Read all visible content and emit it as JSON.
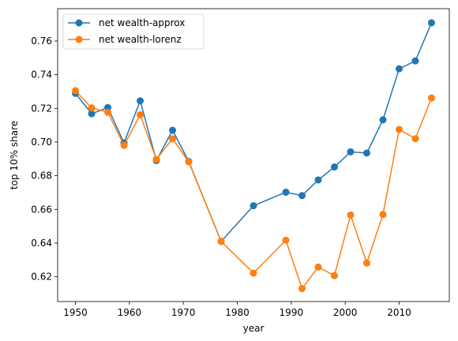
{
  "chart_data": {
    "type": "line",
    "xlabel": "year",
    "ylabel": "top 10% share",
    "xlim": [
      1946.7,
      2019.3
    ],
    "ylim": [
      0.6053,
      0.7792
    ],
    "xticks": [
      1950,
      1960,
      1970,
      1980,
      1990,
      2000,
      2010
    ],
    "xtick_labels": [
      "1950",
      "1960",
      "1970",
      "1980",
      "1990",
      "2000",
      "2010"
    ],
    "yticks": [
      0.62,
      0.64,
      0.66,
      0.68,
      0.7,
      0.72,
      0.74,
      0.76
    ],
    "ytick_labels": [
      "0.62",
      "0.64",
      "0.66",
      "0.68",
      "0.70",
      "0.72",
      "0.74",
      "0.76"
    ],
    "grid": false,
    "legend": "top-left",
    "x": [
      1950,
      1953,
      1956,
      1959,
      1962,
      1965,
      1968,
      1971,
      1977,
      1983,
      1989,
      1992,
      1995,
      1998,
      2001,
      2004,
      2007,
      2010,
      2013,
      2016
    ],
    "series": [
      {
        "name": "net wealth-approx",
        "color": "#1f77b4",
        "values": [
          0.7289,
          0.7168,
          0.7205,
          0.6995,
          0.7245,
          0.689,
          0.707,
          0.6885,
          0.641,
          0.6622,
          0.6702,
          0.6682,
          0.6775,
          0.6852,
          0.6942,
          0.6935,
          0.7132,
          0.7435,
          0.7482,
          0.7708
        ]
      },
      {
        "name": "net wealth-lorenz",
        "color": "#ff7f0e",
        "values": [
          0.7305,
          0.7203,
          0.7177,
          0.698,
          0.7162,
          0.6897,
          0.702,
          0.6882,
          0.641,
          0.6222,
          0.6417,
          0.613,
          0.6258,
          0.6207,
          0.6567,
          0.6282,
          0.657,
          0.7075,
          0.702,
          0.7262
        ]
      }
    ]
  }
}
